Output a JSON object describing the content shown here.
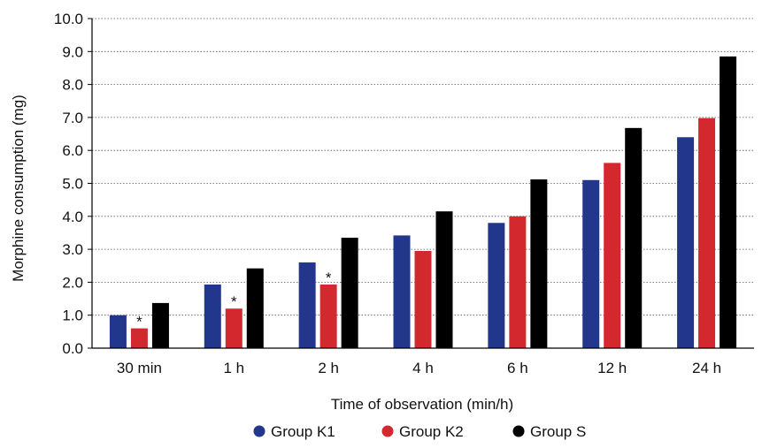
{
  "chart_data": {
    "type": "bar",
    "xlabel": "Time of observation (min/h)",
    "ylabel": "Morphine consumption (mg)",
    "ylim": [
      0,
      10
    ],
    "yticks": [
      "0.0",
      "1.0",
      "2.0",
      "3.0",
      "4.0",
      "5.0",
      "6.0",
      "7.0",
      "8.0",
      "9.0",
      "10.0"
    ],
    "grid": "horizontal dotted",
    "legend_position": "bottom",
    "categories": [
      "30 min",
      "1 h",
      "2 h",
      "4 h",
      "6 h",
      "12 h",
      "24 h"
    ],
    "series": [
      {
        "name": "Group K1",
        "color": "#22378c",
        "values": [
          1.0,
          1.93,
          2.6,
          3.42,
          3.8,
          5.1,
          6.4
        ]
      },
      {
        "name": "Group K2",
        "color": "#d4282f",
        "values": [
          0.6,
          1.2,
          1.93,
          2.95,
          4.0,
          5.62,
          6.98
        ]
      },
      {
        "name": "Group S",
        "color": "#000000",
        "values": [
          1.37,
          2.42,
          3.35,
          4.15,
          5.12,
          6.68,
          8.85
        ]
      }
    ],
    "annotations": [
      {
        "category": "30 min",
        "series": "Group K2",
        "text": "*"
      },
      {
        "category": "1 h",
        "series": "Group K2",
        "text": "*"
      },
      {
        "category": "2 h",
        "series": "Group K2",
        "text": "*"
      }
    ]
  }
}
